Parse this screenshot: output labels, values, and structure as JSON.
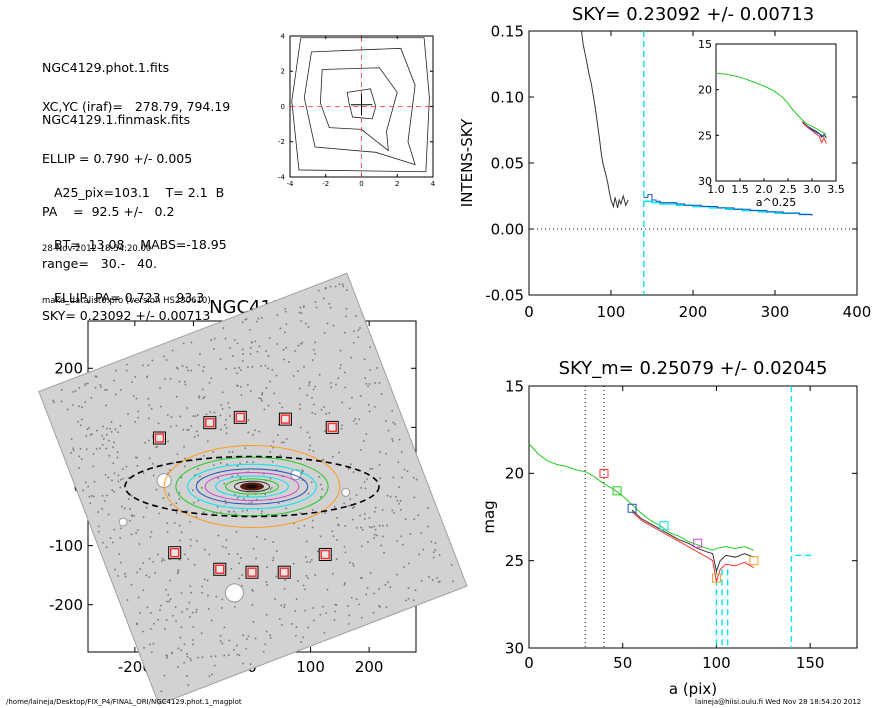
{
  "header_info": {
    "block1": [
      "NGC4129.phot.1.fits",
      "NGC4129.1.finmask.fits"
    ],
    "block2": [
      "XC,YC (iraf)=   278.79, 794.19",
      "ELLIP = 0.790 +/- 0.005",
      "PA    =  92.5 +/-   0.2",
      "range=   30.-   40.",
      "SKY= 0.23092 +/- 0.00713"
    ],
    "block3": [
      "A25_pix=103.1    T= 2.1  B",
      "BT=  13.08    MABS=-18.95",
      "ELLIP, PA= 0.723    93.3"
    ],
    "block4": [
      "28-Nov-2012 18:54:20.00",
      "make_datalist0.pro (version HS230610)"
    ]
  },
  "footer": {
    "left": "/home/laineja/Desktop/FIX_P4/FINAL_ORI/NGC4129.phot.1_magplot",
    "right": "laineja@hiisi.oulu.fi  Wed Nov 28 18:54:20 2012"
  },
  "colors": {
    "axes": "#000000",
    "cyan": "#00e5ee",
    "red": "#ff3030",
    "green": "#22cc22",
    "blue": "#2050c0",
    "orange": "#ff9a20",
    "magenta": "#d040d0",
    "grey": "#888888"
  },
  "chart_data": [
    {
      "id": "contour-panel",
      "type": "contour",
      "title": "",
      "xlim": [
        -4,
        4
      ],
      "ylim": [
        -4,
        4
      ],
      "xticks": [
        "-4",
        "-2",
        "0",
        "2",
        "4"
      ],
      "yticks": [
        "-4",
        "-2",
        "0",
        "2",
        "4"
      ]
    },
    {
      "id": "image-panel",
      "type": "image",
      "title": "NGC4129",
      "xlim": [
        -280,
        280
      ],
      "ylim": [
        -280,
        280
      ],
      "xticks": [
        "-200",
        "-100",
        "0",
        "100",
        "200"
      ],
      "yticks": [
        "-200",
        "-100",
        "0",
        "100",
        "200"
      ],
      "markers": [
        [
          -158,
          82
        ],
        [
          -72,
          108
        ],
        [
          -20,
          117
        ],
        [
          57,
          114
        ],
        [
          137,
          100
        ],
        [
          -132,
          -112
        ],
        [
          -55,
          -140
        ],
        [
          0,
          -145
        ],
        [
          55,
          -145
        ],
        [
          125,
          -115
        ]
      ],
      "ellipse": {
        "semi_major": 103.1,
        "ellip": 0.723,
        "pa": 93.3
      }
    },
    {
      "id": "sky-panel",
      "type": "line",
      "title": "SKY= 0.23092 +/- 0.00713",
      "ylabel": "INTENS-SKY",
      "xlim": [
        0,
        400
      ],
      "ylim": [
        -0.05,
        0.15
      ],
      "xticks": [
        "0",
        "100",
        "200",
        "300",
        "400"
      ],
      "yticks": [
        "0.15",
        "0.10",
        "0.05",
        "0.00",
        "-0.05"
      ],
      "series": [
        {
          "style": "black",
          "x": [
            64,
            66,
            70,
            73,
            76,
            80,
            83,
            86,
            88,
            90,
            93,
            96,
            98,
            100,
            103,
            105,
            108,
            110,
            112,
            115,
            118,
            121
          ],
          "y": [
            0.15,
            0.14,
            0.128,
            0.118,
            0.11,
            0.095,
            0.082,
            0.068,
            0.058,
            0.05,
            0.043,
            0.035,
            0.028,
            0.022,
            0.017,
            0.024,
            0.016,
            0.022,
            0.019,
            0.025,
            0.018,
            0.022
          ]
        },
        {
          "style": "cyan-steps",
          "x": [
            140,
            150,
            160,
            170,
            180,
            190,
            200,
            210,
            220,
            230,
            240,
            250,
            260,
            270,
            280,
            290,
            300,
            310,
            320,
            330,
            340,
            345
          ],
          "y": [
            0.021,
            0.02,
            0.019,
            0.019,
            0.018,
            0.018,
            0.017,
            0.017,
            0.016,
            0.016,
            0.015,
            0.015,
            0.014,
            0.014,
            0.013,
            0.013,
            0.012,
            0.012,
            0.012,
            0.011,
            0.011,
            0.011
          ]
        },
        {
          "style": "blue-steps",
          "x": [
            140,
            145,
            150,
            155,
            160,
            170,
            180,
            190,
            200,
            210,
            220,
            230,
            240,
            250,
            260,
            270,
            280,
            290,
            300,
            310,
            320,
            330,
            340,
            345
          ],
          "y": [
            0.024,
            0.026,
            0.022,
            0.021,
            0.02,
            0.02,
            0.019,
            0.018,
            0.018,
            0.017,
            0.017,
            0.016,
            0.016,
            0.015,
            0.015,
            0.014,
            0.014,
            0.013,
            0.013,
            0.012,
            0.012,
            0.011,
            0.011,
            0.01
          ]
        }
      ],
      "vlines": [
        {
          "x": 140,
          "style": "cyan-dash"
        }
      ],
      "hlines": [
        {
          "y": 0,
          "style": "black-dot"
        }
      ],
      "inset": {
        "xlabel": "a^0.25",
        "xlim": [
          1.0,
          3.5
        ],
        "ylim": [
          15,
          30
        ],
        "xticks": [
          "1.0",
          "1.5",
          "2.0",
          "2.5",
          "3.0",
          "3.5"
        ],
        "yticks": [
          "15",
          "20",
          "25",
          "30"
        ],
        "series": [
          {
            "style": "green",
            "x": [
              1.0,
              1.2,
              1.4,
              1.6,
              1.8,
              2.0,
              2.2,
              2.4,
              2.5,
              2.6,
              2.7,
              2.8,
              2.9,
              3.0,
              3.1,
              3.2,
              3.3
            ],
            "y": [
              18.2,
              18.3,
              18.5,
              18.8,
              19.2,
              19.6,
              20.1,
              20.9,
              21.5,
              22.2,
              22.8,
              23.3,
              23.8,
              24.0,
              24.3,
              24.6,
              24.9
            ]
          },
          {
            "style": "black",
            "x": [
              2.8,
              2.9,
              3.0,
              3.1,
              3.15,
              3.2,
              3.25,
              3.3
            ],
            "y": [
              23.5,
              24.0,
              24.3,
              24.6,
              24.8,
              25.2,
              24.9,
              25.3
            ]
          },
          {
            "style": "red",
            "x": [
              2.8,
              2.9,
              3.0,
              3.1,
              3.15,
              3.2,
              3.25,
              3.3
            ],
            "y": [
              23.6,
              24.1,
              24.5,
              24.9,
              25.1,
              25.8,
              25.3,
              25.9
            ]
          },
          {
            "style": "blue",
            "x": [
              2.9,
              3.0,
              3.1,
              3.2,
              3.25
            ],
            "y": [
              24.0,
              24.4,
              24.7,
              25.0,
              25.2
            ]
          }
        ]
      }
    },
    {
      "id": "mag-panel",
      "type": "line",
      "title": "SKY_m=  0.25079 +/- 0.02045",
      "xlabel": "a (pix)",
      "ylabel": "mag",
      "xlim": [
        0,
        175
      ],
      "ylim": [
        30,
        15
      ],
      "xticks": [
        "0",
        "50",
        "100",
        "150"
      ],
      "yticks": [
        "15",
        "20",
        "25",
        "30"
      ],
      "series": [
        {
          "style": "green",
          "x": [
            0,
            5,
            10,
            15,
            20,
            25,
            30,
            35,
            40,
            45,
            50,
            55,
            60,
            65,
            70,
            75,
            80,
            85,
            90,
            95,
            98,
            100,
            105,
            110,
            115,
            120
          ],
          "y": [
            18.3,
            18.9,
            19.3,
            19.5,
            19.6,
            19.8,
            19.9,
            20.2,
            20.6,
            20.9,
            21.3,
            21.8,
            22.3,
            22.7,
            23.0,
            23.4,
            23.6,
            23.9,
            24.1,
            24.3,
            24.4,
            24.3,
            24.2,
            24.3,
            24.2,
            24.4
          ]
        },
        {
          "style": "black",
          "x": [
            55,
            60,
            65,
            70,
            75,
            80,
            85,
            90,
            95,
            98,
            100,
            102,
            105,
            110,
            115,
            120
          ],
          "y": [
            22.1,
            22.6,
            22.9,
            23.2,
            23.5,
            23.8,
            24.0,
            24.3,
            24.5,
            24.6,
            25.6,
            25.0,
            24.7,
            24.8,
            24.6,
            24.8
          ]
        },
        {
          "style": "red",
          "x": [
            55,
            60,
            65,
            70,
            75,
            80,
            85,
            90,
            95,
            98,
            100,
            102,
            105,
            110,
            115,
            120
          ],
          "y": [
            22.2,
            22.7,
            23.0,
            23.3,
            23.6,
            23.9,
            24.2,
            24.5,
            24.8,
            25.0,
            26.2,
            25.5,
            25.2,
            25.3,
            25.1,
            25.4
          ]
        }
      ],
      "markers": [
        {
          "x": 40,
          "y": 20.0,
          "color": "#ff3030"
        },
        {
          "x": 47,
          "y": 21.0,
          "color": "#22cc22"
        },
        {
          "x": 55,
          "y": 22.0,
          "color": "#2050c0"
        },
        {
          "x": 72,
          "y": 23.0,
          "color": "#00e5ee"
        },
        {
          "x": 90,
          "y": 24.0,
          "color": "#d040d0"
        },
        {
          "x": 100,
          "y": 26.0,
          "color": "#ff9a20"
        },
        {
          "x": 120,
          "y": 25.0,
          "color": "#ff9a20"
        }
      ],
      "vlines": [
        {
          "x": 30,
          "style": "black-dot"
        },
        {
          "x": 40,
          "style": "black-dot"
        },
        {
          "x": 100,
          "style": "cyan-dash"
        },
        {
          "x": 103,
          "style": "cyan-dash"
        },
        {
          "x": 106,
          "style": "cyan-dash"
        },
        {
          "x": 140,
          "style": "cyan-dash"
        }
      ],
      "hsegments": [
        {
          "x0": 142,
          "x1": 152,
          "y": 24.7,
          "style": "cyan-dash"
        }
      ]
    }
  ]
}
